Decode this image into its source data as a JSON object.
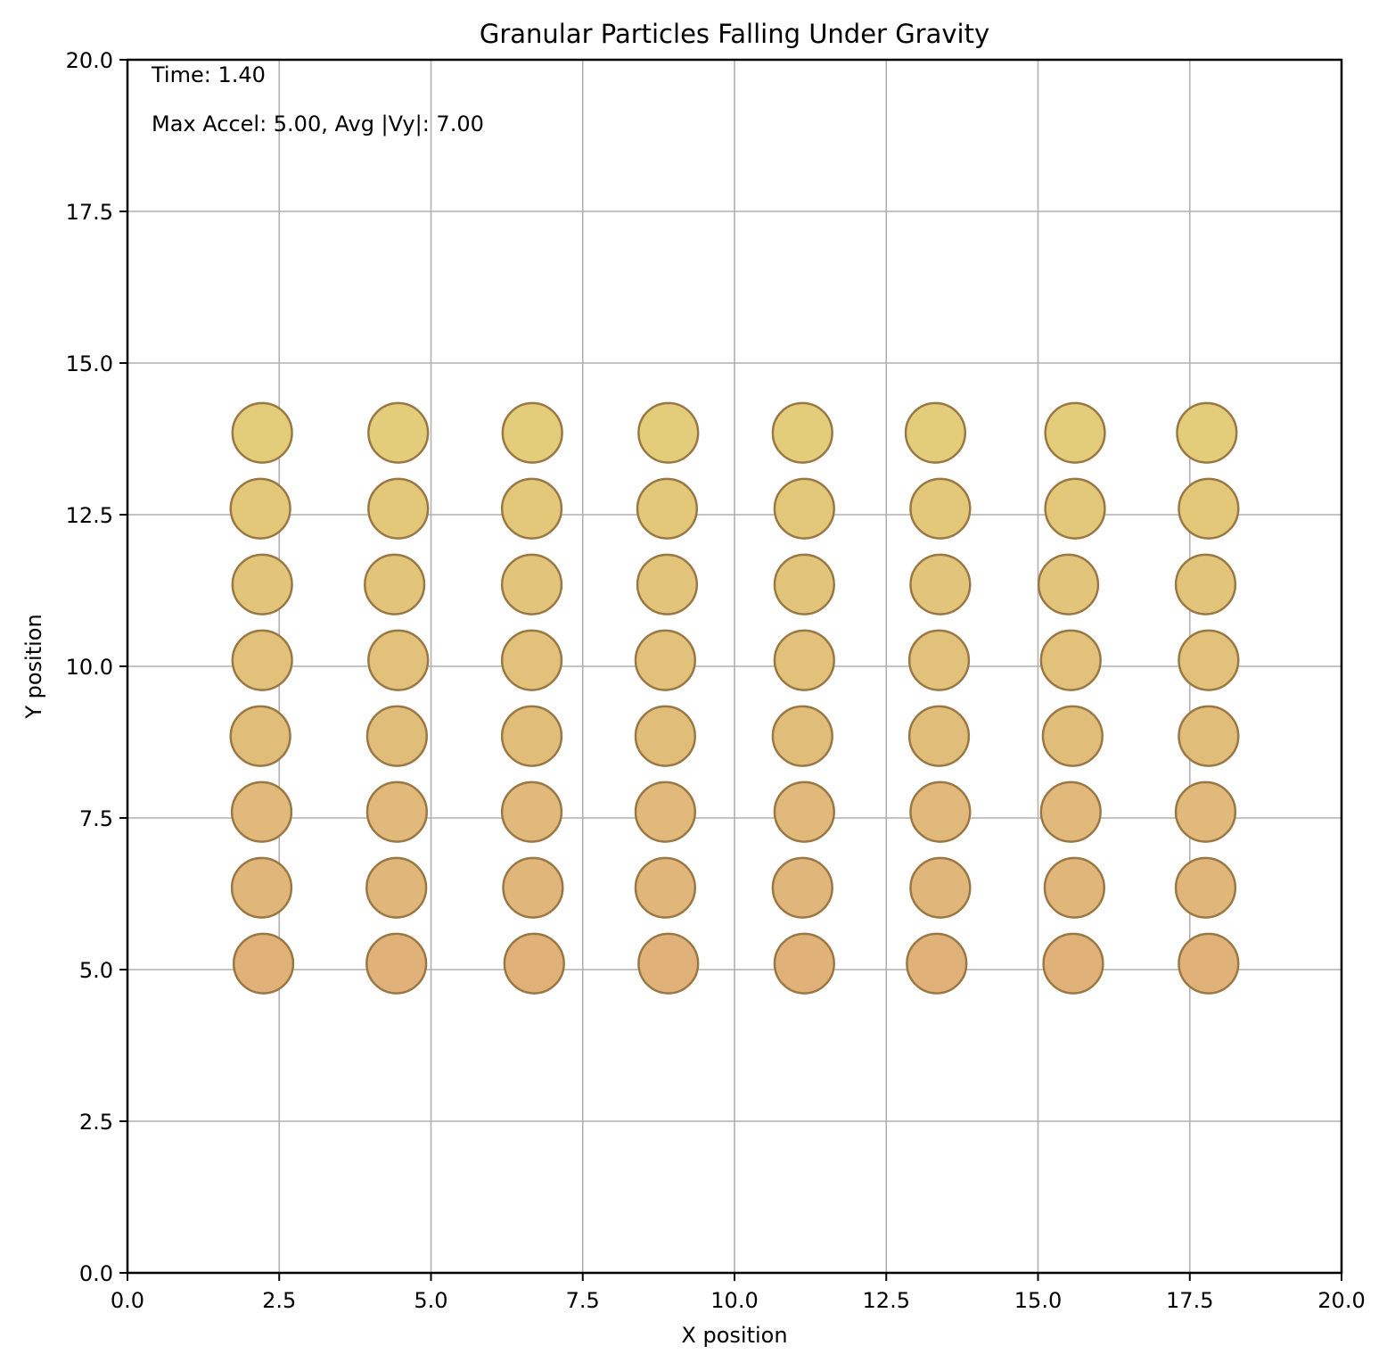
{
  "chart_data": {
    "type": "scatter",
    "title": "Granular Particles Falling Under Gravity",
    "xlabel": "X position",
    "ylabel": "Y position",
    "xlim": [
      0,
      20
    ],
    "ylim": [
      0,
      20
    ],
    "xticks": [
      "0.0",
      "2.5",
      "5.0",
      "7.5",
      "10.0",
      "12.5",
      "15.0",
      "17.5",
      "20.0"
    ],
    "yticks": [
      "0.0",
      "2.5",
      "5.0",
      "7.5",
      "10.0",
      "12.5",
      "15.0",
      "17.5",
      "20.0"
    ],
    "grid": true,
    "annotations": {
      "time": "Time: 1.40",
      "stats": "Max Accel: 5.00, Avg |Vy|: 7.00"
    },
    "marker_fill_top": "#e3cc7a",
    "marker_fill_bottom": "#e0b27a",
    "marker_edge": "#9a7845",
    "marker_radius": 0.49,
    "rows": [
      {
        "y": 13.85,
        "x": [
          2.22,
          4.46,
          6.67,
          8.91,
          11.12,
          13.31,
          15.61,
          17.78
        ]
      },
      {
        "y": 12.6,
        "x": [
          2.19,
          4.46,
          6.66,
          8.89,
          11.15,
          13.39,
          15.61,
          17.81
        ]
      },
      {
        "y": 11.35,
        "x": [
          2.22,
          4.4,
          6.66,
          8.89,
          11.15,
          13.39,
          15.5,
          17.76
        ]
      },
      {
        "y": 10.1,
        "x": [
          2.22,
          4.46,
          6.66,
          8.86,
          11.15,
          13.37,
          15.54,
          17.81
        ]
      },
      {
        "y": 8.85,
        "x": [
          2.19,
          4.44,
          6.66,
          8.86,
          11.12,
          13.37,
          15.57,
          17.81
        ]
      },
      {
        "y": 7.6,
        "x": [
          2.21,
          4.44,
          6.66,
          8.86,
          11.15,
          13.39,
          15.54,
          17.76
        ]
      },
      {
        "y": 6.35,
        "x": [
          2.21,
          4.43,
          6.68,
          8.86,
          11.12,
          13.39,
          15.6,
          17.76
        ]
      },
      {
        "y": 5.1,
        "x": [
          2.24,
          4.43,
          6.7,
          8.91,
          11.15,
          13.33,
          15.58,
          17.81
        ]
      }
    ]
  }
}
